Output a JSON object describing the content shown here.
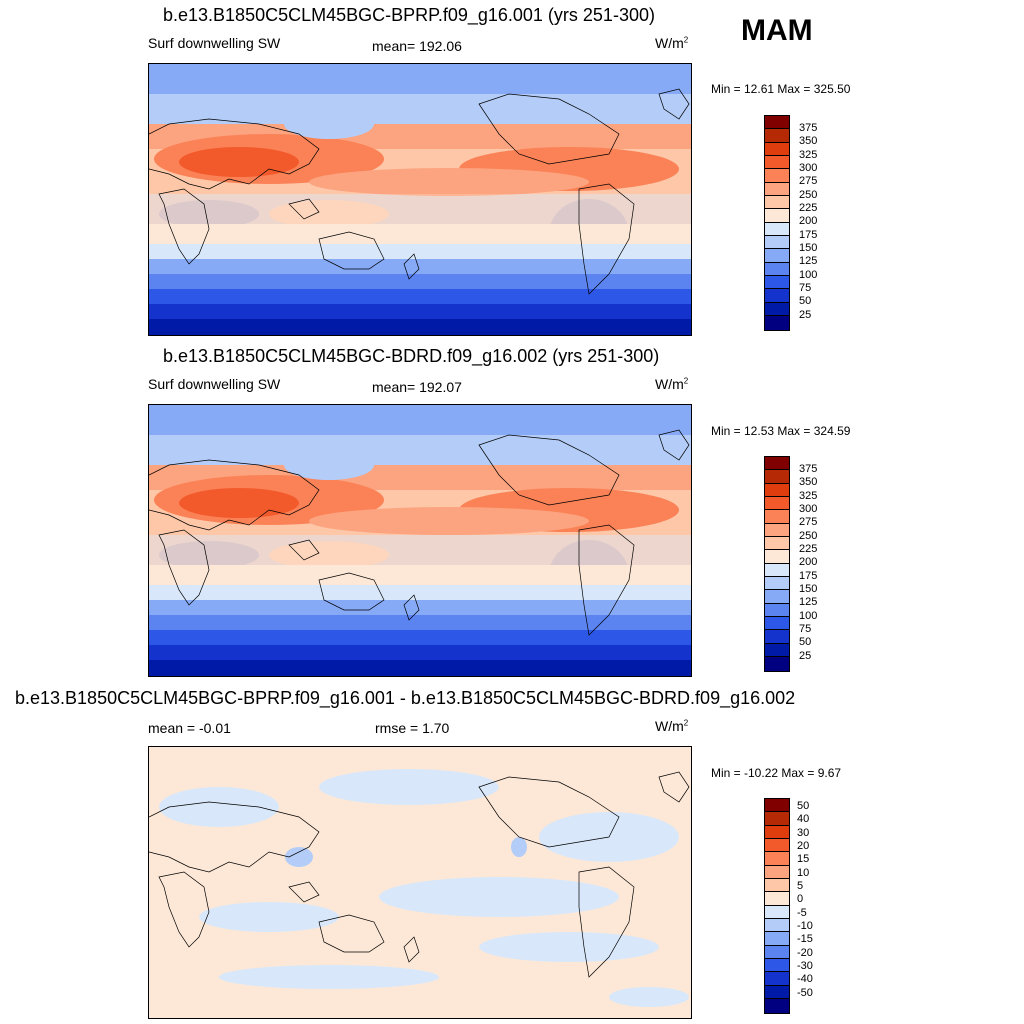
{
  "season": "MAM",
  "panels": [
    {
      "title": "b.e13.B1850C5CLM45BGC-BPRP.f09_g16.001 (yrs 251-300)",
      "left_label": "Surf downwelling SW",
      "center_label": "mean= 192.06",
      "units_base": "W/m",
      "units_exp": "2",
      "minmax": "Min =  12.61 Max = 325.50",
      "legend": [
        "375",
        "350",
        "325",
        "300",
        "275",
        "250",
        "225",
        "200",
        "175",
        "150",
        "125",
        "100",
        "75",
        "50",
        "25"
      ]
    },
    {
      "title": "b.e13.B1850C5CLM45BGC-BDRD.f09_g16.002 (yrs 251-300)",
      "left_label": "Surf downwelling SW",
      "center_label": "mean= 192.07",
      "units_base": "W/m",
      "units_exp": "2",
      "minmax": "Min =  12.53 Max = 324.59",
      "legend": [
        "375",
        "350",
        "325",
        "300",
        "275",
        "250",
        "225",
        "200",
        "175",
        "150",
        "125",
        "100",
        "75",
        "50",
        "25"
      ]
    },
    {
      "title": "b.e13.B1850C5CLM45BGC-BPRP.f09_g16.001 - b.e13.B1850C5CLM45BGC-BDRD.f09_g16.002",
      "left_label": "mean =  -0.01",
      "center_label": "rmse =   1.70",
      "units_base": "W/m",
      "units_exp": "2",
      "minmax": "Min = -10.22 Max =   9.67",
      "legend": [
        "50",
        "40",
        "30",
        "20",
        "15",
        "10",
        "5",
        "0",
        "-5",
        "-10",
        "-15",
        "-20",
        "-30",
        "-40",
        "-50"
      ]
    }
  ],
  "colors": {
    "scale": [
      "#800000",
      "#b52a04",
      "#e03d0f",
      "#f25a2c",
      "#fb8257",
      "#fca37f",
      "#fdc7a8",
      "#fde8d7",
      "#d8e8fa",
      "#b4cdf8",
      "#87aaf6",
      "#5b84f1",
      "#2d58e7",
      "#1333cc",
      "#001aa8",
      "#000080"
    ]
  }
}
